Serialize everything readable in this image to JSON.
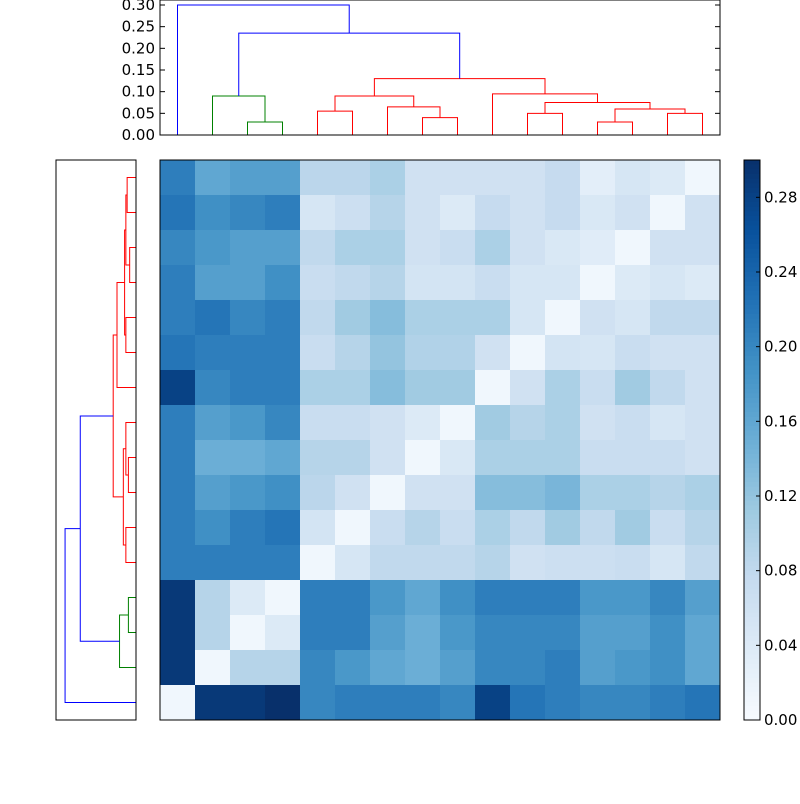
{
  "chart_data": {
    "type": "heatmap",
    "title": "",
    "rows": 16,
    "cols": 16,
    "values": [
      [
        0.21,
        0.16,
        0.17,
        0.17,
        0.085,
        0.085,
        0.1,
        0.06,
        0.06,
        0.06,
        0.06,
        0.075,
        0.03,
        0.05,
        0.04,
        0.01
      ],
      [
        0.22,
        0.19,
        0.2,
        0.21,
        0.05,
        0.065,
        0.09,
        0.06,
        0.04,
        0.075,
        0.06,
        0.075,
        0.045,
        0.06,
        0.01,
        0.06
      ],
      [
        0.2,
        0.18,
        0.17,
        0.17,
        0.08,
        0.1,
        0.1,
        0.06,
        0.07,
        0.1,
        0.06,
        0.045,
        0.035,
        0.01,
        0.06,
        0.06
      ],
      [
        0.21,
        0.17,
        0.17,
        0.19,
        0.07,
        0.08,
        0.09,
        0.055,
        0.055,
        0.07,
        0.05,
        0.05,
        0.01,
        0.04,
        0.05,
        0.04
      ],
      [
        0.21,
        0.22,
        0.2,
        0.21,
        0.08,
        0.11,
        0.13,
        0.1,
        0.1,
        0.1,
        0.05,
        0.01,
        0.06,
        0.05,
        0.08,
        0.08
      ],
      [
        0.22,
        0.21,
        0.21,
        0.21,
        0.07,
        0.09,
        0.12,
        0.095,
        0.095,
        0.06,
        0.01,
        0.055,
        0.05,
        0.07,
        0.06,
        0.06
      ],
      [
        0.28,
        0.2,
        0.21,
        0.21,
        0.1,
        0.1,
        0.13,
        0.11,
        0.11,
        0.01,
        0.06,
        0.1,
        0.07,
        0.11,
        0.08,
        0.06
      ],
      [
        0.21,
        0.17,
        0.18,
        0.2,
        0.07,
        0.07,
        0.06,
        0.04,
        0.01,
        0.11,
        0.09,
        0.1,
        0.06,
        0.07,
        0.05,
        0.06
      ],
      [
        0.21,
        0.15,
        0.15,
        0.16,
        0.09,
        0.09,
        0.06,
        0.01,
        0.045,
        0.1,
        0.1,
        0.1,
        0.07,
        0.07,
        0.07,
        0.06
      ],
      [
        0.21,
        0.17,
        0.18,
        0.19,
        0.085,
        0.06,
        0.01,
        0.06,
        0.06,
        0.13,
        0.13,
        0.14,
        0.1,
        0.1,
        0.09,
        0.1
      ],
      [
        0.21,
        0.19,
        0.21,
        0.22,
        0.055,
        0.01,
        0.07,
        0.09,
        0.07,
        0.1,
        0.08,
        0.11,
        0.08,
        0.11,
        0.07,
        0.09
      ],
      [
        0.21,
        0.21,
        0.21,
        0.21,
        0.01,
        0.05,
        0.08,
        0.08,
        0.08,
        0.09,
        0.06,
        0.065,
        0.065,
        0.07,
        0.05,
        0.08
      ],
      [
        0.29,
        0.09,
        0.04,
        0.01,
        0.21,
        0.21,
        0.18,
        0.16,
        0.19,
        0.21,
        0.21,
        0.21,
        0.18,
        0.18,
        0.2,
        0.17
      ],
      [
        0.29,
        0.09,
        0.01,
        0.04,
        0.21,
        0.21,
        0.17,
        0.15,
        0.18,
        0.2,
        0.2,
        0.2,
        0.17,
        0.17,
        0.19,
        0.16
      ],
      [
        0.29,
        0.01,
        0.09,
        0.09,
        0.2,
        0.18,
        0.16,
        0.15,
        0.17,
        0.2,
        0.2,
        0.21,
        0.17,
        0.18,
        0.19,
        0.16
      ],
      [
        0.01,
        0.29,
        0.29,
        0.3,
        0.2,
        0.21,
        0.21,
        0.21,
        0.2,
        0.28,
        0.22,
        0.21,
        0.2,
        0.2,
        0.21,
        0.22
      ]
    ],
    "colormap": [
      "#f7fbff",
      "#deebf7",
      "#c6dbef",
      "#9ecae1",
      "#6baed6",
      "#4292c6",
      "#2171b5",
      "#08519c",
      "#08306b"
    ],
    "colorbar": {
      "range": [
        0.0,
        0.3
      ],
      "ticks": [
        "0.00",
        "0.04",
        "0.08",
        "0.12",
        "0.16",
        "0.20",
        "0.24",
        "0.28"
      ]
    },
    "top_dendrogram": {
      "yticks": [
        "0.00",
        "0.05",
        "0.10",
        "0.15",
        "0.20",
        "0.25",
        "0.30"
      ],
      "ylim": [
        0.0,
        0.3
      ],
      "link_colors": {
        "blue": "#0000ff",
        "green": "#008000",
        "red": "#ff0000"
      }
    }
  }
}
